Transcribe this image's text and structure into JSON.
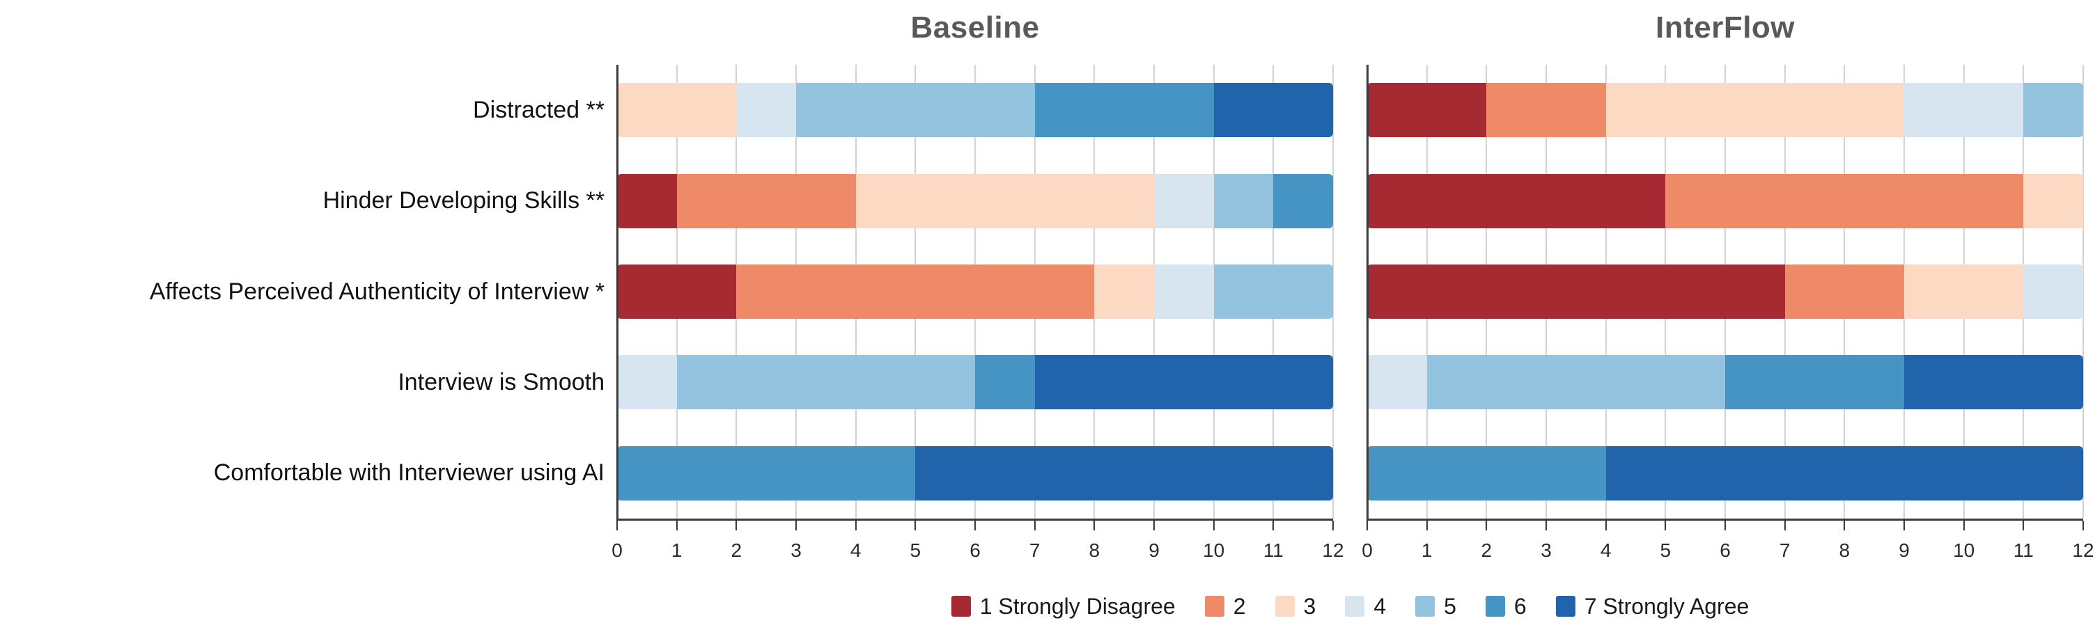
{
  "chart_data": {
    "type": "bar",
    "orientation": "horizontal",
    "stacked": true,
    "categories": [
      "Distracted **",
      "Hinder Developing Skills **",
      "Affects Perceived Authenticity of Interview *",
      "Interview is Smooth",
      "Comfortable with Interviewer using AI"
    ],
    "levels": [
      {
        "label": "1 Strongly Disagree",
        "color": "#A62A31"
      },
      {
        "label": "2",
        "color": "#EE8A68"
      },
      {
        "label": "3",
        "color": "#FCD9C3"
      },
      {
        "label": "4",
        "color": "#D6E5F0"
      },
      {
        "label": "5",
        "color": "#93C3DE"
      },
      {
        "label": "6",
        "color": "#4694C4"
      },
      {
        "label": "7 Strongly Agree",
        "color": "#2264AB"
      }
    ],
    "facets": [
      {
        "title": "Baseline",
        "values": [
          [
            0,
            0,
            2,
            1,
            4,
            3,
            2
          ],
          [
            1,
            3,
            5,
            1,
            1,
            1,
            0
          ],
          [
            2,
            6,
            1,
            1,
            2,
            0,
            0
          ],
          [
            0,
            0,
            0,
            1,
            5,
            1,
            5
          ],
          [
            0,
            0,
            0,
            0,
            0,
            5,
            7
          ]
        ]
      },
      {
        "title": "InterFlow",
        "values": [
          [
            2,
            2,
            5,
            2,
            1,
            0,
            0
          ],
          [
            5,
            6,
            1,
            0,
            0,
            0,
            0
          ],
          [
            7,
            2,
            2,
            1,
            0,
            0,
            0
          ],
          [
            0,
            0,
            0,
            1,
            5,
            3,
            3
          ],
          [
            0,
            0,
            0,
            0,
            0,
            4,
            8
          ]
        ]
      }
    ],
    "xlim": [
      0,
      12
    ],
    "xticks": [
      0,
      1,
      2,
      3,
      4,
      5,
      6,
      7,
      8,
      9,
      10,
      11,
      12
    ],
    "xlabel": "",
    "ylabel": "",
    "grid": "vertical",
    "legend_position": "bottom",
    "title_color": "#595959",
    "axis_color": "#3a3a3a",
    "grid_color": "#d4d4d4"
  }
}
